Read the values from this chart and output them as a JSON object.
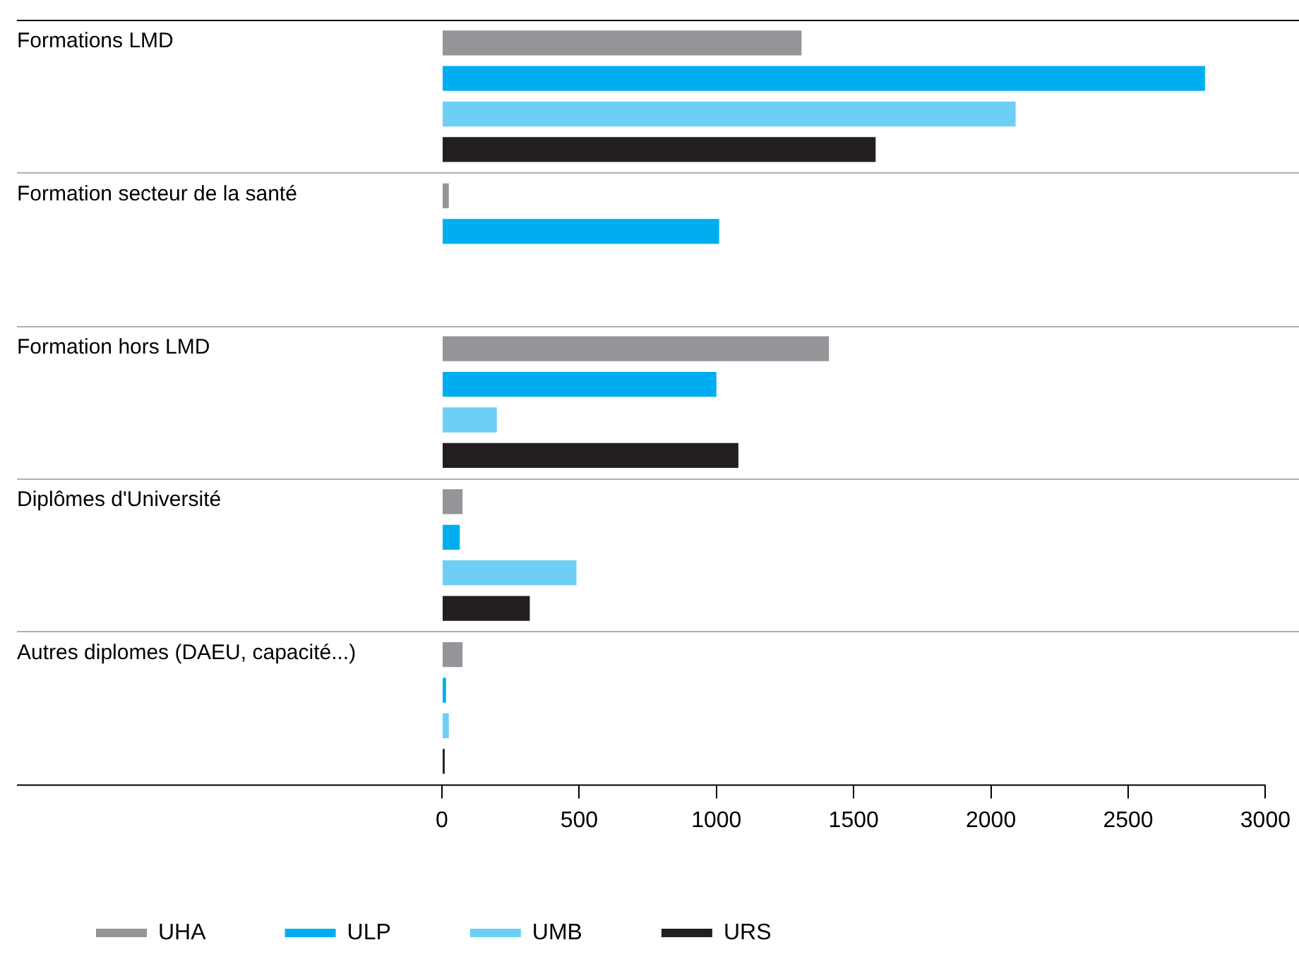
{
  "chart_data": {
    "type": "bar",
    "orientation": "horizontal",
    "categories": [
      "Formations LMD",
      "Formation secteur de la santé",
      "Formation hors LMD",
      "Diplômes d'Université",
      "Autres diplomes (DAEU, capacité...)"
    ],
    "series": [
      {
        "name": "UHA",
        "color": "#939598",
        "values": [
          1310,
          25,
          1410,
          75,
          75
        ]
      },
      {
        "name": "ULP",
        "color": "#00aeef",
        "values": [
          2780,
          1010,
          1000,
          65,
          15
        ]
      },
      {
        "name": "UMB",
        "color": "#6dcff6",
        "values": [
          2090,
          null,
          200,
          490,
          25
        ]
      },
      {
        "name": "URS",
        "color": "#231f20",
        "values": [
          1580,
          null,
          1080,
          320,
          10
        ]
      }
    ],
    "xlim": [
      0,
      3000
    ],
    "xticks": [
      0,
      500,
      1000,
      1500,
      2000,
      2500,
      3000
    ],
    "grid": "y",
    "legend": "bottom left"
  }
}
